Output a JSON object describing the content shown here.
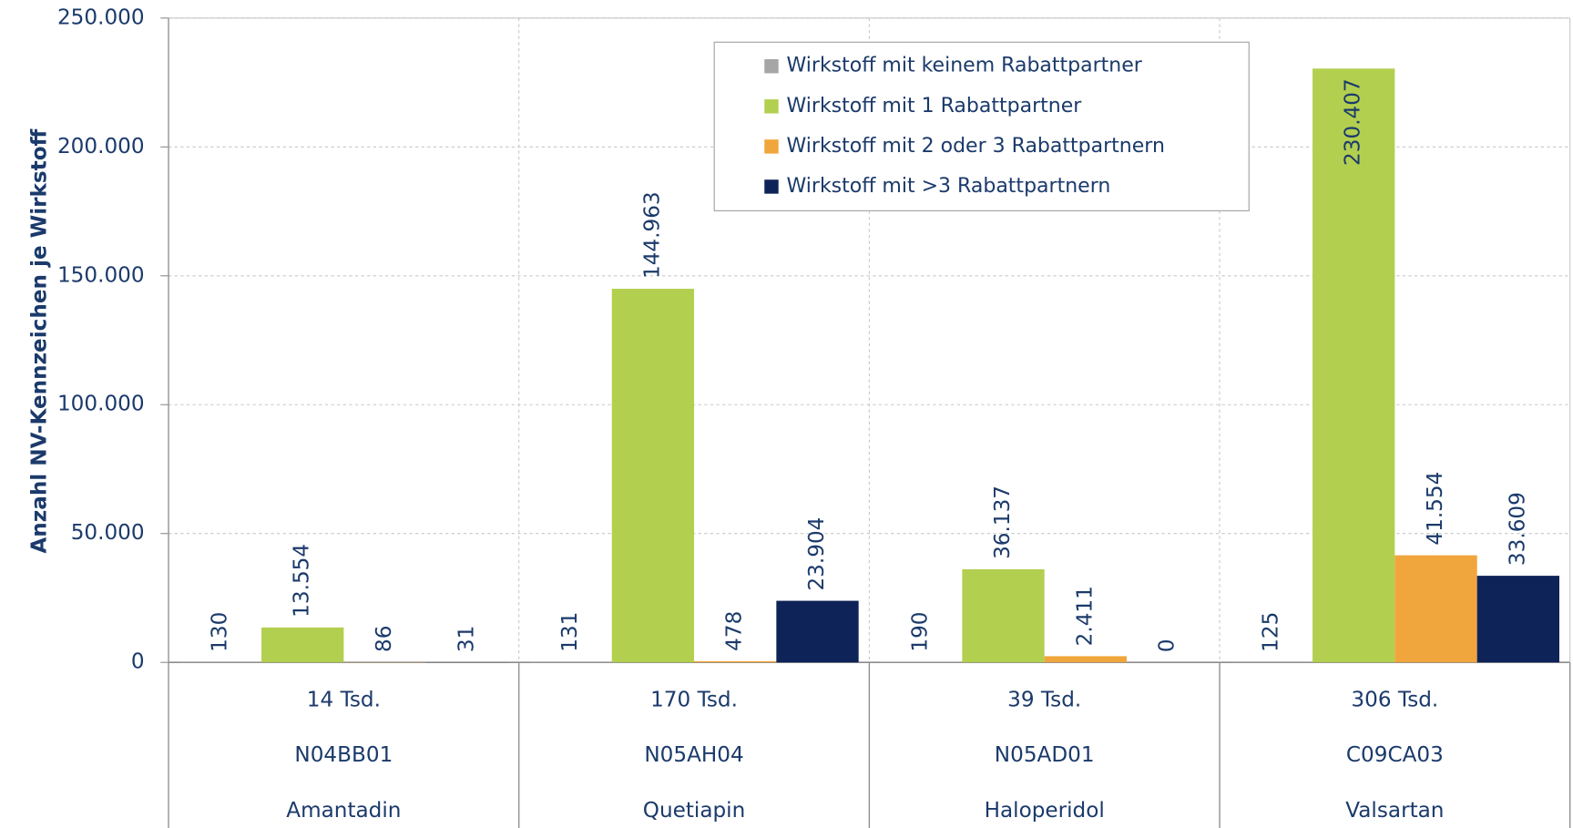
{
  "chart_data": {
    "type": "bar",
    "y_label": "Anzahl NV-Kennzeichen je Wirkstoff",
    "categories": [
      "Amantadin",
      "Quetiapin",
      "Haloperidol",
      "Valsartan"
    ],
    "category_codes": [
      "N04BB01",
      "N05AH04",
      "N05AD01",
      "C09CA03"
    ],
    "category_totals": [
      "14 Tsd.",
      "170 Tsd.",
      "39 Tsd.",
      "306 Tsd."
    ],
    "series": [
      {
        "name": "Wirkstoff mit keinem Rabattpartner",
        "color": "#a6a6a6",
        "values": [
          130,
          131,
          190,
          125
        ],
        "value_labels": [
          "130",
          "131",
          "190",
          "125"
        ]
      },
      {
        "name": "Wirkstoff mit 1 Rabattpartner",
        "color": "#b3cf4f",
        "values": [
          13554,
          144963,
          36137,
          230407
        ],
        "value_labels": [
          "13.554",
          "144.963",
          "36.137",
          "230.407"
        ]
      },
      {
        "name": "Wirkstoff mit 2 oder 3 Rabattpartnern",
        "color": "#f0a63c",
        "values": [
          86,
          478,
          2411,
          41554
        ],
        "value_labels": [
          "86",
          "478",
          "2.411",
          "41.554"
        ]
      },
      {
        "name": "Wirkstoff mit >3 Rabattpartnern",
        "color": "#0e2358",
        "values": [
          31,
          23904,
          0,
          33609
        ],
        "value_labels": [
          "31",
          "23.904",
          "0",
          "33.609"
        ]
      }
    ],
    "ylim": [
      0,
      250000
    ],
    "yticks": [
      0,
      {
        "value": 50000,
        "label": "50.000"
      },
      {
        "value": 100000,
        "label": "100.000"
      },
      {
        "value": 150000,
        "label": "150.000"
      },
      {
        "value": 200000,
        "label": "200.000"
      },
      {
        "value": 250000,
        "label": "250.000"
      }
    ],
    "grid": true,
    "legend": "top-right"
  }
}
